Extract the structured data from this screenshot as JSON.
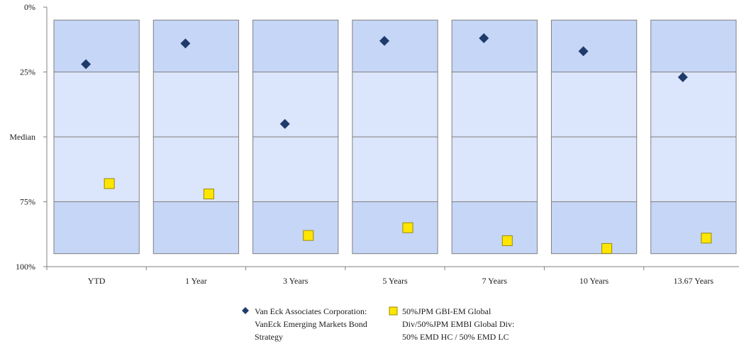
{
  "chart_data": {
    "type": "scatter",
    "title": "",
    "xlabel": "",
    "ylabel": "",
    "y_axis": {
      "reversed": true,
      "range": [
        0,
        100
      ],
      "ticks": [
        {
          "value": 0,
          "label": "0%"
        },
        {
          "value": 25,
          "label": "25%"
        },
        {
          "value": 50,
          "label": "Median"
        },
        {
          "value": 75,
          "label": "75%"
        },
        {
          "value": 100,
          "label": "100%"
        }
      ]
    },
    "categories": [
      "YTD",
      "1 Year",
      "3 Years",
      "5 Years",
      "7 Years",
      "10 Years",
      "13.67 Years"
    ],
    "range_bands": {
      "description_colors": {
        "outer": "#c6d6f7",
        "inner": "#dbe5fb",
        "border": "#808080"
      },
      "percentiles": [
        5,
        25,
        50,
        75,
        95
      ]
    },
    "series": [
      {
        "name": "Van Eck Associates Corporation: VanEck Emerging Markets Bond Strategy",
        "marker": "diamond",
        "color": "#1f3b6b",
        "values": [
          22,
          14,
          45,
          13,
          12,
          17,
          27
        ]
      },
      {
        "name": "50%JPM GBI-EM Global Div/50%JPM EMBI Global Div: 50% EMD HC / 50% EMD LC",
        "marker": "square",
        "color": "#ffe600",
        "values": [
          68,
          72,
          88,
          85,
          90,
          93,
          89
        ]
      }
    ],
    "legend_position": "bottom"
  }
}
